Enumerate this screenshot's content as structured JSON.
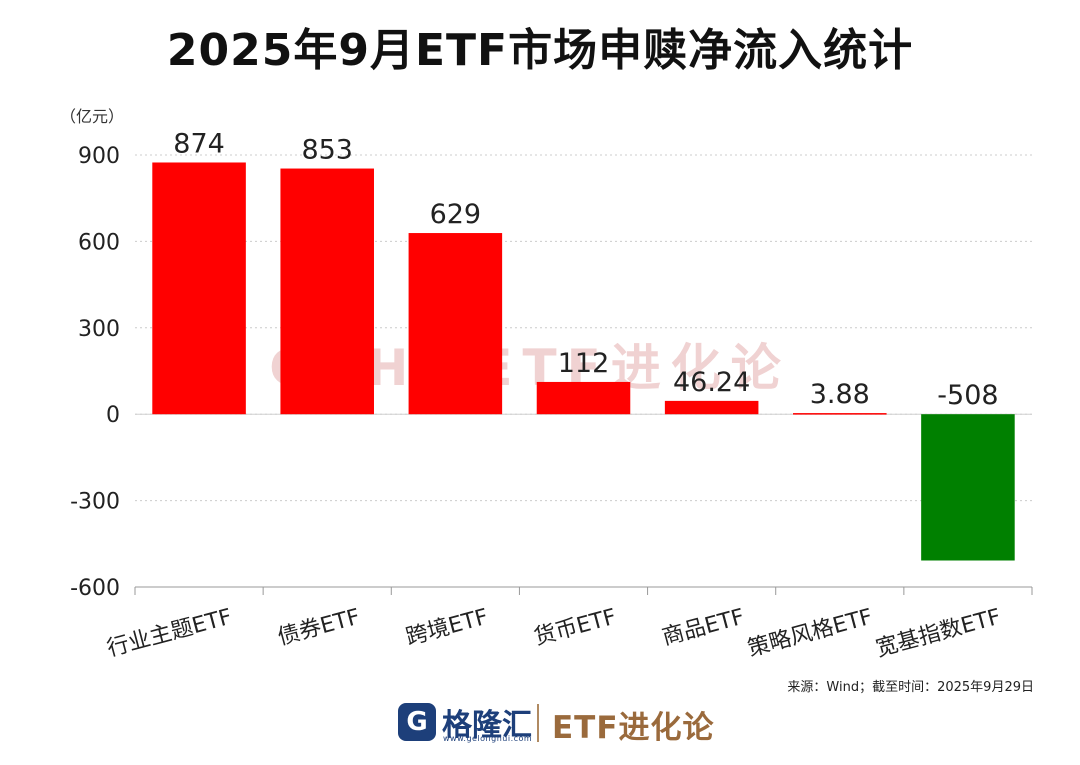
{
  "title": "2025年9月ETF市场申赎净流入统计",
  "source_note": "来源：Wind；截至时间：2025年9月29日",
  "watermark": "GZH：ETF进化论",
  "footer": {
    "logo_mark": "G",
    "logo_name": "格隆汇",
    "logo_site": "www.gelonghui.com",
    "brand": "ETF进化论"
  },
  "colors": {
    "positive": "#ff0000",
    "negative": "#008000",
    "grid": "#cccccc",
    "watermark": "#f0d2d2"
  },
  "chart_data": {
    "type": "bar",
    "unit_label": "（亿元）",
    "categories": [
      "行业主题ETF",
      "债券ETF",
      "跨境ETF",
      "货币ETF",
      "商品ETF",
      "策略风格ETF",
      "宽基指数ETF"
    ],
    "values": [
      874,
      853,
      629,
      112,
      46.24,
      3.88,
      -508
    ],
    "data_labels": [
      "874",
      "853",
      "629",
      "112",
      "46.24",
      "3.88",
      "-508"
    ],
    "yticks": [
      "900",
      "600",
      "300",
      "0",
      "-300",
      "-600"
    ],
    "ylim": [
      -600,
      900
    ],
    "grid": true,
    "legend": "none"
  }
}
